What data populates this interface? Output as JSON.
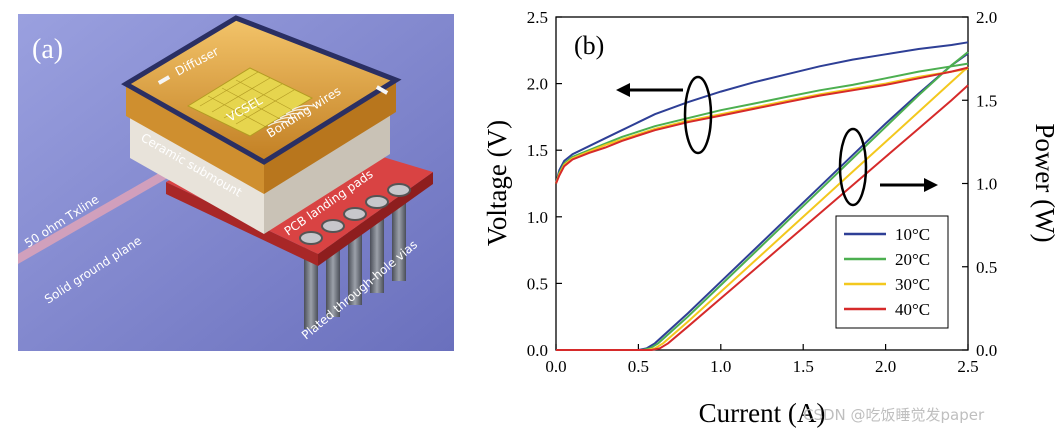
{
  "panel_a": {
    "label": "(a)",
    "callouts": {
      "diffuser": "Diffuser",
      "vcsel": "VCSEL",
      "bonding_wires": "Bonding wires",
      "ceramic_submount": "Ceramic submount",
      "pcb_pads": "PCB landing pads",
      "txline": "50 ohm Txline",
      "ground_plane": "Solid ground plane",
      "vias": "Plated through-hole vias"
    },
    "colors": {
      "background": "#7f86cf",
      "diffuser": "#d69a3c",
      "pcb": "#d94343",
      "ceramic": "#e8e3da"
    }
  },
  "watermark": "CSDN @吃饭睡觉发paper",
  "chart_data": {
    "type": "line",
    "panel_label": "(b)",
    "xlabel": "Current (A)",
    "ylabel_left": "Voltage (V)",
    "ylabel_right": "Power (W)",
    "xlim": [
      0,
      2.5
    ],
    "ylim_left": [
      0,
      2.5
    ],
    "ylim_right": [
      0,
      2.0
    ],
    "x_ticks": [
      "0.0",
      "0.5",
      "1.0",
      "1.5",
      "2.0",
      "2.5"
    ],
    "y_ticks_left": [
      "0.0",
      "0.5",
      "1.0",
      "1.5",
      "2.0",
      "2.5"
    ],
    "y_ticks_right": [
      "0.0",
      "0.5",
      "1.0",
      "1.5",
      "2.0"
    ],
    "legend_position": "bottom-right",
    "grid": false,
    "series": [
      {
        "name": "10°C",
        "color": "#2e3f96",
        "voltage": [
          [
            0,
            1.25
          ],
          [
            0.02,
            1.35
          ],
          [
            0.05,
            1.42
          ],
          [
            0.1,
            1.47
          ],
          [
            0.2,
            1.53
          ],
          [
            0.3,
            1.59
          ],
          [
            0.4,
            1.65
          ],
          [
            0.5,
            1.71
          ],
          [
            0.6,
            1.77
          ],
          [
            0.8,
            1.86
          ],
          [
            1.0,
            1.94
          ],
          [
            1.2,
            2.01
          ],
          [
            1.4,
            2.07
          ],
          [
            1.6,
            2.13
          ],
          [
            1.8,
            2.18
          ],
          [
            2.0,
            2.22
          ],
          [
            2.2,
            2.26
          ],
          [
            2.4,
            2.29
          ],
          [
            2.5,
            2.31
          ]
        ],
        "power": [
          [
            0,
            0
          ],
          [
            0.5,
            0
          ],
          [
            0.55,
            0.01
          ],
          [
            0.6,
            0.04
          ],
          [
            0.8,
            0.22
          ],
          [
            1.0,
            0.41
          ],
          [
            1.2,
            0.6
          ],
          [
            1.4,
            0.79
          ],
          [
            1.6,
            0.98
          ],
          [
            1.8,
            1.17
          ],
          [
            2.0,
            1.36
          ],
          [
            2.2,
            1.54
          ],
          [
            2.4,
            1.71
          ],
          [
            2.5,
            1.78
          ]
        ]
      },
      {
        "name": "20°C",
        "color": "#4caf50",
        "voltage": [
          [
            0,
            1.25
          ],
          [
            0.02,
            1.33
          ],
          [
            0.05,
            1.4
          ],
          [
            0.1,
            1.45
          ],
          [
            0.2,
            1.5
          ],
          [
            0.3,
            1.55
          ],
          [
            0.4,
            1.6
          ],
          [
            0.5,
            1.64
          ],
          [
            0.6,
            1.68
          ],
          [
            0.8,
            1.74
          ],
          [
            1.0,
            1.8
          ],
          [
            1.2,
            1.85
          ],
          [
            1.4,
            1.9
          ],
          [
            1.6,
            1.95
          ],
          [
            1.8,
            1.99
          ],
          [
            2.0,
            2.04
          ],
          [
            2.2,
            2.09
          ],
          [
            2.4,
            2.13
          ],
          [
            2.5,
            2.15
          ]
        ],
        "power": [
          [
            0,
            0
          ],
          [
            0.52,
            0
          ],
          [
            0.57,
            0.01
          ],
          [
            0.62,
            0.04
          ],
          [
            0.8,
            0.2
          ],
          [
            1.0,
            0.39
          ],
          [
            1.2,
            0.58
          ],
          [
            1.4,
            0.77
          ],
          [
            1.6,
            0.96
          ],
          [
            1.8,
            1.15
          ],
          [
            2.0,
            1.34
          ],
          [
            2.2,
            1.53
          ],
          [
            2.4,
            1.71
          ],
          [
            2.5,
            1.79
          ]
        ]
      },
      {
        "name": "30°C",
        "color": "#f3c81e",
        "voltage": [
          [
            0,
            1.25
          ],
          [
            0.02,
            1.32
          ],
          [
            0.05,
            1.39
          ],
          [
            0.1,
            1.44
          ],
          [
            0.2,
            1.49
          ],
          [
            0.3,
            1.54
          ],
          [
            0.4,
            1.58
          ],
          [
            0.5,
            1.62
          ],
          [
            0.6,
            1.66
          ],
          [
            0.8,
            1.72
          ],
          [
            1.0,
            1.77
          ],
          [
            1.2,
            1.82
          ],
          [
            1.4,
            1.87
          ],
          [
            1.6,
            1.92
          ],
          [
            1.8,
            1.96
          ],
          [
            2.0,
            2.0
          ],
          [
            2.2,
            2.05
          ],
          [
            2.4,
            2.09
          ],
          [
            2.5,
            2.11
          ]
        ],
        "power": [
          [
            0,
            0
          ],
          [
            0.55,
            0
          ],
          [
            0.6,
            0.01
          ],
          [
            0.65,
            0.04
          ],
          [
            0.8,
            0.17
          ],
          [
            1.0,
            0.35
          ],
          [
            1.2,
            0.53
          ],
          [
            1.4,
            0.71
          ],
          [
            1.6,
            0.89
          ],
          [
            1.8,
            1.07
          ],
          [
            2.0,
            1.25
          ],
          [
            2.2,
            1.43
          ],
          [
            2.4,
            1.61
          ],
          [
            2.5,
            1.7
          ]
        ]
      },
      {
        "name": "40°C",
        "color": "#d62a2a",
        "voltage": [
          [
            0,
            1.25
          ],
          [
            0.02,
            1.31
          ],
          [
            0.05,
            1.38
          ],
          [
            0.1,
            1.43
          ],
          [
            0.2,
            1.48
          ],
          [
            0.3,
            1.52
          ],
          [
            0.4,
            1.57
          ],
          [
            0.5,
            1.61
          ],
          [
            0.6,
            1.65
          ],
          [
            0.8,
            1.71
          ],
          [
            1.0,
            1.76
          ],
          [
            1.2,
            1.81
          ],
          [
            1.4,
            1.86
          ],
          [
            1.6,
            1.91
          ],
          [
            1.8,
            1.95
          ],
          [
            2.0,
            1.99
          ],
          [
            2.2,
            2.04
          ],
          [
            2.4,
            2.09
          ],
          [
            2.5,
            2.12
          ]
        ],
        "power": [
          [
            0,
            0
          ],
          [
            0.58,
            0
          ],
          [
            0.63,
            0.01
          ],
          [
            0.68,
            0.04
          ],
          [
            0.8,
            0.14
          ],
          [
            1.0,
            0.31
          ],
          [
            1.2,
            0.48
          ],
          [
            1.4,
            0.65
          ],
          [
            1.6,
            0.82
          ],
          [
            1.8,
            0.99
          ],
          [
            2.0,
            1.16
          ],
          [
            2.2,
            1.33
          ],
          [
            2.4,
            1.5
          ],
          [
            2.5,
            1.59
          ]
        ]
      }
    ]
  }
}
